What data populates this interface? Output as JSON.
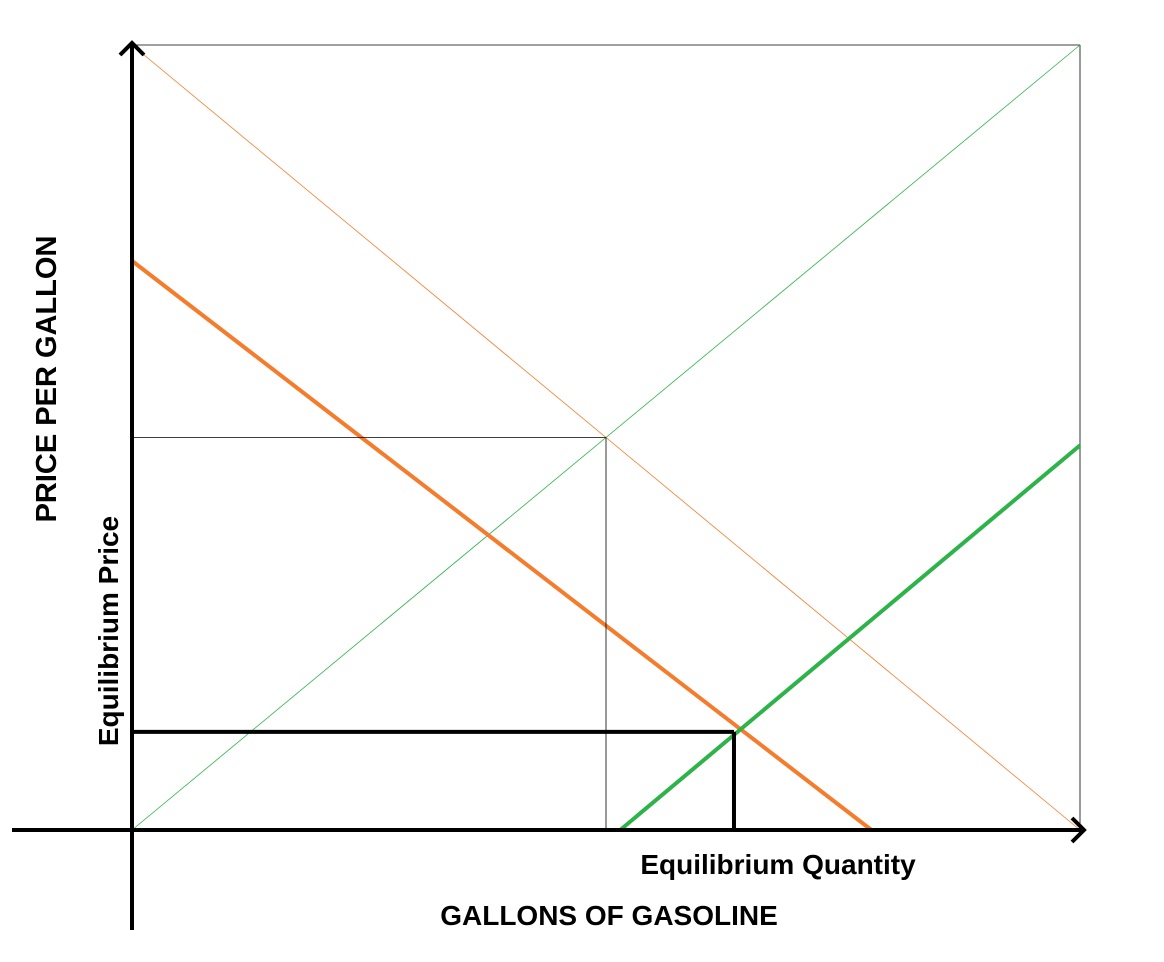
{
  "chart_data": {
    "type": "line",
    "title": "",
    "xlabel": "GALLONS OF GASOLINE",
    "ylabel": "PRICE PER GALLON",
    "xlim": [
      0,
      10
    ],
    "ylim": [
      0,
      10
    ],
    "grid": false,
    "legend": "none",
    "colors": {
      "demand": "#f47c2c",
      "supply": "#2db34a",
      "axis": "#000000"
    },
    "series": [
      {
        "role": "original-demand",
        "color_key": "demand",
        "weight": "thin",
        "x": [
          0,
          10
        ],
        "y": [
          10,
          0
        ]
      },
      {
        "role": "original-supply",
        "color_key": "supply",
        "weight": "thin",
        "x": [
          0,
          10
        ],
        "y": [
          0,
          10
        ]
      },
      {
        "role": "shifted-demand",
        "color_key": "demand",
        "weight": "thick",
        "x": [
          0,
          7.8
        ],
        "y": [
          7.25,
          0
        ]
      },
      {
        "role": "shifted-supply",
        "color_key": "supply",
        "weight": "thick",
        "x": [
          5.15,
          10
        ],
        "y": [
          0,
          4.9
        ]
      }
    ],
    "reference_lines": [
      {
        "role": "original-equilibrium",
        "weight": "thin",
        "point": [
          5,
          5
        ]
      },
      {
        "role": "new-equilibrium",
        "weight": "thick",
        "point": [
          6.35,
          1.25
        ]
      }
    ],
    "annotations": {
      "equilibrium_price": "Equilibrium Price",
      "equilibrium_quantity": "Equilibrium Quantity"
    }
  }
}
